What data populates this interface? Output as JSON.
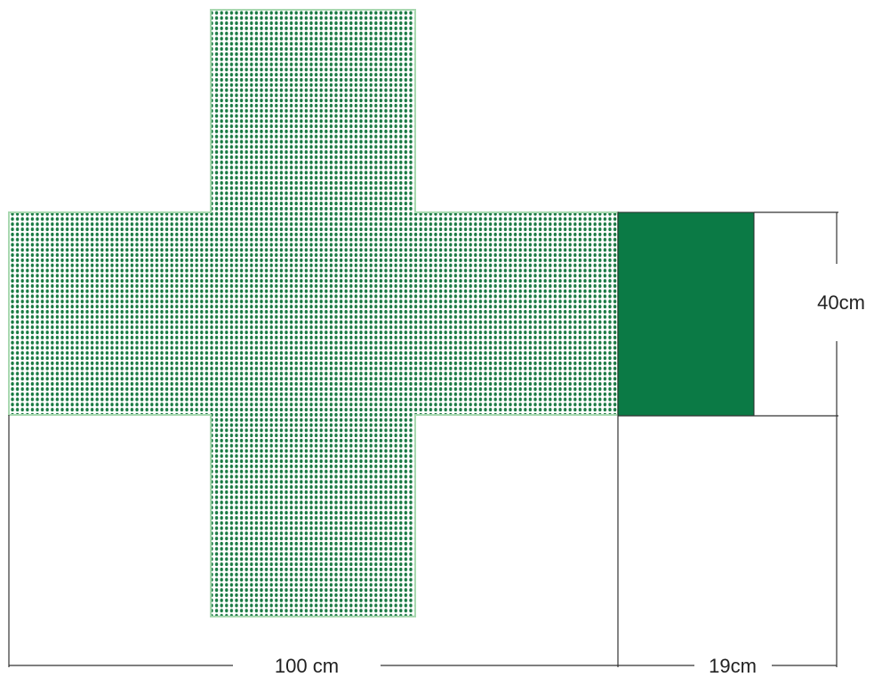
{
  "labels": {
    "width_label": "100 cm",
    "depth_label": "19cm",
    "height_label": "40cm"
  },
  "colors": {
    "dot_fill": "#1a7a43",
    "panel_fill": "#0b7a45",
    "panel_outline": "#a8d8b0",
    "dimension_line": "#333333"
  }
}
